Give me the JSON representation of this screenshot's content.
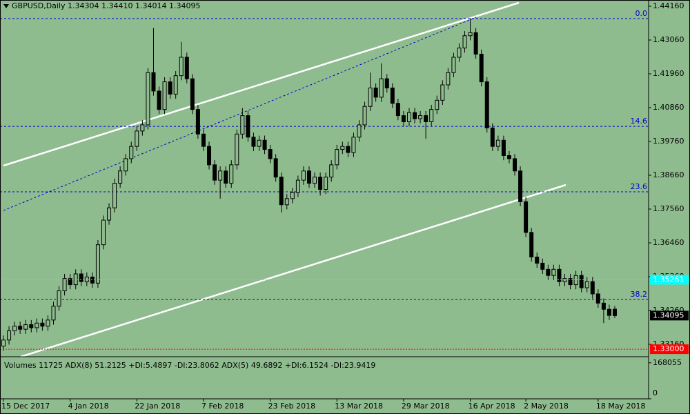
{
  "chart_data": {
    "type": "candlestick",
    "title": "GBPUSD,Daily  1.34304 1.34410 1.34014 1.34095",
    "categories": [
      "15 Dec 2017",
      null,
      null,
      null,
      null,
      null,
      null,
      null,
      null,
      null,
      null,
      null,
      "4 Jan 2018",
      null,
      null,
      null,
      null,
      null,
      null,
      null,
      null,
      null,
      null,
      null,
      "22 Jan 2018",
      null,
      null,
      null,
      null,
      null,
      null,
      null,
      null,
      null,
      null,
      null,
      "7 Feb 2018",
      null,
      null,
      null,
      null,
      null,
      null,
      null,
      null,
      null,
      null,
      null,
      "23 Feb 2018",
      null,
      null,
      null,
      null,
      null,
      null,
      null,
      null,
      null,
      null,
      null,
      "13 Mar 2018",
      null,
      null,
      null,
      null,
      null,
      null,
      null,
      null,
      null,
      null,
      null,
      "29 Mar 2018",
      null,
      null,
      null,
      null,
      null,
      null,
      null,
      null,
      null,
      null,
      null,
      "16 Apr 2018",
      null,
      null,
      null,
      null,
      null,
      null,
      null,
      null,
      null,
      "2 May 2018",
      null,
      null,
      null,
      null,
      null,
      null,
      null,
      null,
      null,
      null,
      null,
      null,
      "18 May 2018",
      null,
      null,
      null
    ],
    "open": [
      1.331,
      1.333,
      1.336,
      1.3375,
      1.3365,
      1.338,
      1.337,
      1.3385,
      1.3375,
      1.3395,
      1.344,
      1.349,
      1.353,
      1.351,
      1.3545,
      1.352,
      1.3535,
      1.3515,
      1.364,
      1.372,
      1.376,
      1.384,
      1.388,
      1.392,
      1.396,
      1.401,
      1.403,
      1.42,
      1.414,
      1.408,
      1.417,
      1.413,
      1.419,
      1.425,
      1.418,
      1.408,
      1.4,
      1.396,
      1.39,
      1.385,
      1.388,
      1.384,
      1.39,
      1.4,
      1.406,
      1.399,
      1.396,
      1.398,
      1.395,
      1.392,
      1.386,
      1.377,
      1.379,
      1.381,
      1.385,
      1.388,
      1.384,
      1.386,
      1.382,
      1.386,
      1.39,
      1.395,
      1.396,
      1.394,
      1.399,
      1.403,
      1.409,
      1.415,
      1.412,
      1.418,
      1.415,
      1.41,
      1.406,
      1.404,
      1.407,
      1.405,
      1.406,
      1.404,
      1.408,
      1.411,
      1.416,
      1.42,
      1.425,
      1.428,
      1.432,
      1.433,
      1.426,
      1.417,
      1.402,
      1.396,
      1.398,
      1.393,
      1.392,
      1.388,
      1.378,
      1.368,
      1.36,
      1.358,
      1.356,
      1.354,
      1.356,
      1.352,
      1.353,
      1.351,
      1.354,
      1.35,
      1.352,
      1.348,
      1.345,
      1.343,
      1.34304
    ],
    "high": [
      1.3345,
      1.3375,
      1.339,
      1.339,
      1.3395,
      1.3395,
      1.34,
      1.34,
      1.341,
      1.3455,
      1.3505,
      1.3545,
      1.3545,
      1.356,
      1.356,
      1.355,
      1.355,
      1.3655,
      1.3735,
      1.3775,
      1.3855,
      1.3895,
      1.3935,
      1.3975,
      1.4025,
      1.4045,
      1.4215,
      1.4345,
      1.4155,
      1.4185,
      1.4185,
      1.4205,
      1.43,
      1.4265,
      1.4195,
      1.4095,
      1.4015,
      1.3975,
      1.3915,
      1.3895,
      1.3895,
      1.3915,
      1.4015,
      1.4085,
      1.4075,
      1.4005,
      1.3995,
      1.3995,
      1.3965,
      1.3935,
      1.3875,
      1.3805,
      1.3825,
      1.3865,
      1.3895,
      1.3895,
      1.3875,
      1.3875,
      1.3875,
      1.3915,
      1.3965,
      1.3975,
      1.3975,
      1.4005,
      1.4045,
      1.4105,
      1.42,
      1.4165,
      1.423,
      1.4195,
      1.4165,
      1.4115,
      1.4075,
      1.4085,
      1.4085,
      1.4075,
      1.4075,
      1.4095,
      1.4125,
      1.4175,
      1.4215,
      1.4265,
      1.4295,
      1.4335,
      1.4377,
      1.4345,
      1.4275,
      1.4185,
      1.4035,
      1.3995,
      1.3995,
      1.3945,
      1.3935,
      1.3895,
      1.3795,
      1.3695,
      1.3615,
      1.3595,
      1.3575,
      1.3575,
      1.3575,
      1.3545,
      1.3545,
      1.3555,
      1.3555,
      1.3535,
      1.3535,
      1.3495,
      1.3465,
      1.3445,
      1.3441
    ],
    "low": [
      1.3295,
      1.3315,
      1.3345,
      1.335,
      1.335,
      1.3355,
      1.3355,
      1.336,
      1.336,
      1.338,
      1.3425,
      1.3475,
      1.3495,
      1.3495,
      1.3505,
      1.3505,
      1.35,
      1.35,
      1.3625,
      1.3705,
      1.3745,
      1.3825,
      1.3865,
      1.3905,
      1.3945,
      1.3995,
      1.4015,
      1.4125,
      1.4065,
      1.4065,
      1.4115,
      1.4115,
      1.4175,
      1.4165,
      1.4065,
      1.3985,
      1.3945,
      1.3885,
      1.3835,
      1.379,
      1.3825,
      1.3825,
      1.3885,
      1.3985,
      1.3975,
      1.3945,
      1.3945,
      1.3935,
      1.3905,
      1.3845,
      1.3745,
      1.3755,
      1.3775,
      1.3795,
      1.3835,
      1.3825,
      1.3825,
      1.38,
      1.3805,
      1.3845,
      1.3885,
      1.3935,
      1.3925,
      1.3925,
      1.3975,
      1.4015,
      1.4075,
      1.4105,
      1.4105,
      1.4135,
      1.4085,
      1.4045,
      1.4025,
      1.4025,
      1.4035,
      1.4035,
      1.3985,
      1.4025,
      1.4065,
      1.4095,
      1.4145,
      1.4185,
      1.4235,
      1.4265,
      1.4305,
      1.4245,
      1.4155,
      1.4005,
      1.3945,
      1.3945,
      1.3915,
      1.3905,
      1.3865,
      1.3765,
      1.3665,
      1.3585,
      1.3565,
      1.3545,
      1.3525,
      1.3525,
      1.3505,
      1.3505,
      1.3495,
      1.3495,
      1.3485,
      1.3485,
      1.3465,
      1.3435,
      1.3385,
      1.3395,
      1.34014
    ],
    "close": [
      1.333,
      1.336,
      1.3375,
      1.3365,
      1.338,
      1.337,
      1.3385,
      1.3375,
      1.3395,
      1.344,
      1.349,
      1.353,
      1.351,
      1.3545,
      1.352,
      1.3535,
      1.3515,
      1.364,
      1.372,
      1.376,
      1.384,
      1.388,
      1.392,
      1.396,
      1.401,
      1.403,
      1.42,
      1.414,
      1.408,
      1.417,
      1.413,
      1.419,
      1.425,
      1.418,
      1.408,
      1.4,
      1.396,
      1.39,
      1.385,
      1.388,
      1.384,
      1.39,
      1.4,
      1.406,
      1.399,
      1.396,
      1.398,
      1.395,
      1.392,
      1.386,
      1.377,
      1.379,
      1.381,
      1.385,
      1.388,
      1.384,
      1.386,
      1.382,
      1.386,
      1.39,
      1.395,
      1.396,
      1.394,
      1.399,
      1.403,
      1.409,
      1.415,
      1.412,
      1.418,
      1.415,
      1.41,
      1.406,
      1.404,
      1.407,
      1.405,
      1.406,
      1.404,
      1.408,
      1.411,
      1.416,
      1.42,
      1.425,
      1.428,
      1.432,
      1.433,
      1.426,
      1.417,
      1.402,
      1.396,
      1.398,
      1.393,
      1.392,
      1.388,
      1.378,
      1.368,
      1.36,
      1.358,
      1.356,
      1.354,
      1.356,
      1.352,
      1.353,
      1.351,
      1.354,
      1.35,
      1.352,
      1.348,
      1.345,
      1.343,
      1.341,
      1.34095
    ],
    "bull_color": "#8fbc8f",
    "bear_color": "#000000",
    "ylim": [
      1.32756,
      1.44362
    ],
    "yticks": [
      {
        "value": 1.4416,
        "label": "1.44160"
      },
      {
        "value": 1.4306,
        "label": "1.43060"
      },
      {
        "value": 1.4196,
        "label": "1.41960"
      },
      {
        "value": 1.4086,
        "label": "1.40860"
      },
      {
        "value": 1.3976,
        "label": "1.39760"
      },
      {
        "value": 1.3866,
        "label": "1.38660"
      },
      {
        "value": 1.3756,
        "label": "1.37560"
      },
      {
        "value": 1.3646,
        "label": "1.36460"
      },
      {
        "value": 1.3536,
        "label": "1.35360"
      },
      {
        "value": 1.3426,
        "label": "1.34260"
      },
      {
        "value": 1.3316,
        "label": "1.33160"
      }
    ],
    "levels": [
      {
        "value": 1.4376,
        "label": "0.0"
      },
      {
        "value": 1.4025,
        "label": "14.6"
      },
      {
        "value": 1.3812,
        "label": "23.6"
      },
      {
        "value": 1.3462,
        "label": "38.2"
      }
    ],
    "level_color": "#0000cc",
    "markers": [
      {
        "value": 1.35261,
        "label": "1.35261",
        "color": "#00ffff"
      },
      {
        "value": 1.34095,
        "label": "1.34095",
        "color": "#000000"
      },
      {
        "value": 1.33,
        "label": "1.33000",
        "color": "#ff0000"
      }
    ],
    "subpanel": {
      "title": "Volumes 11725  ADX(8) 51.2125 +DI:5.4897 -DI:23.8062  ADX(5) 49.6892 +DI:6.1524 -DI:23.9419",
      "ylim": [
        0,
        190000
      ],
      "yticks": [
        168055,
        0
      ]
    }
  }
}
